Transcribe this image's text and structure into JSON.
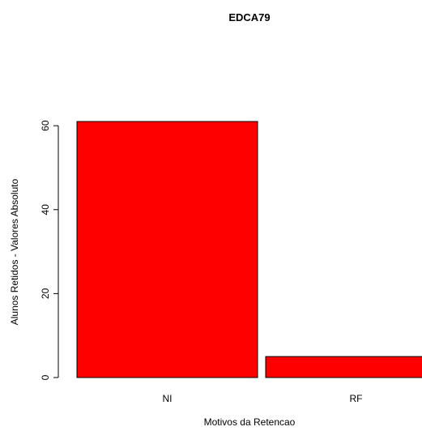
{
  "chart_data": {
    "type": "bar",
    "title": "EDCA79",
    "xlabel": "Motivos da Retencao",
    "ylabel": "Alunos Retidos - Valores Absoluto",
    "categories": [
      "NI",
      "RF"
    ],
    "values": [
      61,
      5
    ],
    "ylim": [
      0,
      61
    ],
    "yticks": [
      0,
      20,
      40,
      60
    ],
    "grid": false,
    "bar_color": "#ff0000",
    "bar_edge_color": "#000000"
  }
}
